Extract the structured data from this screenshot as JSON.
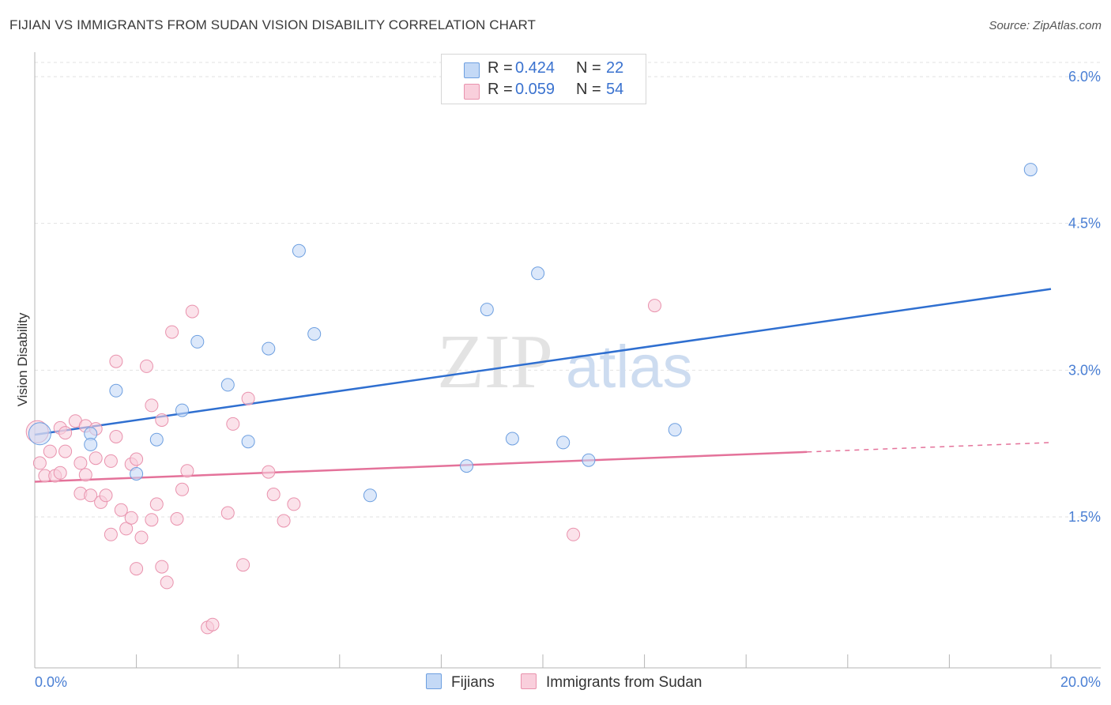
{
  "title": "FIJIAN VS IMMIGRANTS FROM SUDAN VISION DISABILITY CORRELATION CHART",
  "source": "Source: ZipAtlas.com",
  "watermark": {
    "zip": "ZIP",
    "atlas": "atlas"
  },
  "legend": {
    "rows": [
      {
        "r_label": "R =",
        "r_value": "0.424",
        "n_label": "N =",
        "n_value": "22",
        "color": "#a9c8f2"
      },
      {
        "r_label": "R =",
        "r_value": "0.059",
        "n_label": "N =",
        "n_value": "54",
        "color": "#f7b8cb"
      }
    ]
  },
  "bottom_legend": {
    "items": [
      {
        "label": "Fijians",
        "color": "#a9c8f2"
      },
      {
        "label": "Immigrants from Sudan",
        "color": "#f7b8cb"
      }
    ]
  },
  "chart_data": {
    "type": "scatter",
    "title": "FIJIAN VS IMMIGRANTS FROM SUDAN VISION DISABILITY CORRELATION CHART",
    "xlabel": "",
    "ylabel": "Vision Disability",
    "xlim": [
      0,
      20
    ],
    "ylim": [
      0,
      6.3
    ],
    "x_tick_labels": [
      "0.0%",
      "20.0%"
    ],
    "y_ticks": [
      1.5,
      3.0,
      4.5,
      6.0
    ],
    "y_tick_labels": [
      "1.5%",
      "3.0%",
      "4.5%",
      "6.0%"
    ],
    "grid": true,
    "series": [
      {
        "name": "Fijians",
        "color": "#6d9fe0",
        "fill": "#c4d9f6",
        "trend": {
          "x0": 0,
          "y0": 2.34,
          "x1": 20,
          "y1": 3.83,
          "color": "#2f6fd0",
          "dashed_from": null
        },
        "points": [
          [
            0.1,
            2.35
          ],
          [
            1.1,
            2.35
          ],
          [
            1.1,
            2.24
          ],
          [
            1.6,
            2.79
          ],
          [
            2.0,
            1.94
          ],
          [
            2.4,
            2.29
          ],
          [
            2.9,
            2.59
          ],
          [
            3.2,
            3.29
          ],
          [
            3.8,
            2.85
          ],
          [
            4.2,
            2.27
          ],
          [
            4.6,
            3.22
          ],
          [
            5.2,
            4.22
          ],
          [
            5.5,
            3.37
          ],
          [
            6.6,
            1.72
          ],
          [
            8.5,
            2.02
          ],
          [
            8.9,
            3.62
          ],
          [
            9.4,
            2.3
          ],
          [
            9.9,
            3.99
          ],
          [
            10.4,
            2.26
          ],
          [
            10.9,
            2.08
          ],
          [
            12.6,
            2.39
          ],
          [
            19.6,
            5.05
          ]
        ]
      },
      {
        "name": "Immigrants from Sudan",
        "color": "#e992ad",
        "fill": "#f9cfdc",
        "trend": {
          "x0": 0,
          "y0": 1.86,
          "x1": 20,
          "y1": 2.26,
          "color": "#e4729a",
          "dashed_from": 15.2
        },
        "points": [
          [
            0.05,
            2.37
          ],
          [
            0.1,
            2.05
          ],
          [
            0.2,
            1.92
          ],
          [
            0.3,
            2.17
          ],
          [
            0.4,
            1.92
          ],
          [
            0.5,
            2.41
          ],
          [
            0.5,
            1.95
          ],
          [
            0.6,
            2.17
          ],
          [
            0.6,
            2.36
          ],
          [
            0.8,
            2.48
          ],
          [
            0.9,
            1.74
          ],
          [
            0.9,
            2.05
          ],
          [
            1.0,
            1.93
          ],
          [
            1.0,
            2.43
          ],
          [
            1.1,
            1.72
          ],
          [
            1.2,
            2.1
          ],
          [
            1.2,
            2.4
          ],
          [
            1.3,
            1.65
          ],
          [
            1.4,
            1.72
          ],
          [
            1.5,
            2.07
          ],
          [
            1.5,
            1.32
          ],
          [
            1.6,
            2.32
          ],
          [
            1.6,
            3.09
          ],
          [
            1.7,
            1.57
          ],
          [
            1.8,
            1.38
          ],
          [
            1.9,
            2.04
          ],
          [
            1.9,
            1.49
          ],
          [
            2.0,
            0.97
          ],
          [
            2.0,
            2.09
          ],
          [
            2.1,
            1.29
          ],
          [
            2.2,
            3.04
          ],
          [
            2.3,
            1.47
          ],
          [
            2.3,
            2.64
          ],
          [
            2.4,
            1.63
          ],
          [
            2.5,
            0.99
          ],
          [
            2.5,
            2.49
          ],
          [
            2.6,
            0.83
          ],
          [
            2.7,
            3.39
          ],
          [
            2.8,
            1.48
          ],
          [
            2.9,
            1.78
          ],
          [
            3.0,
            1.97
          ],
          [
            3.1,
            3.6
          ],
          [
            3.4,
            0.37
          ],
          [
            3.5,
            0.4
          ],
          [
            3.8,
            1.54
          ],
          [
            3.9,
            2.45
          ],
          [
            4.1,
            1.01
          ],
          [
            4.2,
            2.71
          ],
          [
            4.6,
            1.96
          ],
          [
            4.7,
            1.73
          ],
          [
            4.9,
            1.46
          ],
          [
            5.1,
            1.63
          ],
          [
            10.6,
            1.32
          ],
          [
            12.2,
            3.66
          ]
        ]
      }
    ]
  }
}
